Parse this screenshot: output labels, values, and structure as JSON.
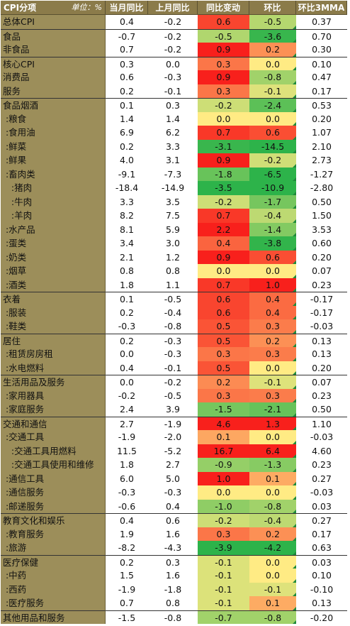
{
  "header": {
    "category_label": "CPI分项",
    "unit_label": "单位：%",
    "columns": [
      "当月同比",
      "上月同比",
      "同比变动",
      "环比",
      "环比3MMA"
    ]
  },
  "colors": {
    "header_bg": "#8b7b4a",
    "name_bg": "#9c8e5a",
    "scale_neg": "#2db34a",
    "scale_mid": "#ffeb84",
    "scale_pos": "#f8201c"
  },
  "rows": [
    {
      "name": "总体CPI",
      "cur": "0.4",
      "prev": "-0.2",
      "chg": "0.6",
      "mom": "-0.5",
      "mma": "0.37",
      "sep": false
    },
    {
      "name": "食品",
      "cur": "-0.7",
      "prev": "-0.2",
      "chg": "-0.5",
      "mom": "-3.6",
      "mma": "0.70",
      "sep": true
    },
    {
      "name": "非食品",
      "cur": "0.7",
      "prev": "-0.2",
      "chg": "0.9",
      "mom": "0.2",
      "mma": "0.30",
      "sep": false
    },
    {
      "name": "核心CPI",
      "cur": "0.3",
      "prev": "0.0",
      "chg": "0.3",
      "mom": "0.0",
      "mma": "0.10",
      "sep": true
    },
    {
      "name": "消费品",
      "cur": "0.6",
      "prev": "-0.3",
      "chg": "0.9",
      "mom": "-0.8",
      "mma": "0.47",
      "sep": false
    },
    {
      "name": "服务",
      "cur": "0.2",
      "prev": "-0.1",
      "chg": "0.3",
      "mom": "-0.1",
      "mma": "0.17",
      "sep": false
    },
    {
      "name": "食品烟酒",
      "cur": "0.1",
      "prev": "0.3",
      "chg": "-0.2",
      "mom": "-2.4",
      "mma": "0.53",
      "sep": true
    },
    {
      "name": " :粮食",
      "cur": "1.4",
      "prev": "1.4",
      "chg": "0.0",
      "mom": "0.0",
      "mma": "0.20",
      "sep": false
    },
    {
      "name": " :食用油",
      "cur": "6.9",
      "prev": "6.2",
      "chg": "0.7",
      "mom": "0.6",
      "mma": "1.07",
      "sep": false
    },
    {
      "name": " :鲜菜",
      "cur": "0.2",
      "prev": "3.3",
      "chg": "-3.1",
      "mom": "-14.5",
      "mma": "2.10",
      "sep": false
    },
    {
      "name": " :鲜果",
      "cur": "4.0",
      "prev": "3.1",
      "chg": "0.9",
      "mom": "-0.2",
      "mma": "2.73",
      "sep": false
    },
    {
      "name": " :畜肉类",
      "cur": "-9.1",
      "prev": "-7.3",
      "chg": "-1.8",
      "mom": "-6.5",
      "mma": "-1.27",
      "sep": false
    },
    {
      "name": "   :猪肉",
      "cur": "-18.4",
      "prev": "-14.9",
      "chg": "-3.5",
      "mom": "-10.9",
      "mma": "-2.80",
      "sep": false
    },
    {
      "name": "   :牛肉",
      "cur": "3.3",
      "prev": "3.5",
      "chg": "-0.2",
      "mom": "-1.7",
      "mma": "0.50",
      "sep": false
    },
    {
      "name": "   :羊肉",
      "cur": "8.2",
      "prev": "7.5",
      "chg": "0.7",
      "mom": "-0.4",
      "mma": "1.50",
      "sep": false
    },
    {
      "name": " :水产品",
      "cur": "8.1",
      "prev": "5.9",
      "chg": "2.2",
      "mom": "-1.4",
      "mma": "3.53",
      "sep": false
    },
    {
      "name": " :蛋类",
      "cur": "3.4",
      "prev": "3.0",
      "chg": "0.4",
      "mom": "-3.8",
      "mma": "0.60",
      "sep": false
    },
    {
      "name": " :奶类",
      "cur": "2.1",
      "prev": "1.2",
      "chg": "0.9",
      "mom": "0.6",
      "mma": "0.20",
      "sep": false
    },
    {
      "name": " :烟草",
      "cur": "0.8",
      "prev": "0.8",
      "chg": "0.0",
      "mom": "0.0",
      "mma": "0.07",
      "sep": false
    },
    {
      "name": " :酒类",
      "cur": "1.8",
      "prev": "1.1",
      "chg": "0.7",
      "mom": "1.0",
      "mma": "0.23",
      "sep": false
    },
    {
      "name": "衣着",
      "cur": "0.1",
      "prev": "-0.5",
      "chg": "0.6",
      "mom": "0.4",
      "mma": "-0.17",
      "sep": true
    },
    {
      "name": " :服装",
      "cur": "0.2",
      "prev": "-0.4",
      "chg": "0.6",
      "mom": "0.4",
      "mma": "-0.17",
      "sep": false
    },
    {
      "name": " :鞋类",
      "cur": "-0.3",
      "prev": "-0.8",
      "chg": "0.5",
      "mom": "0.3",
      "mma": "-0.03",
      "sep": false
    },
    {
      "name": "居住",
      "cur": "0.2",
      "prev": "-0.3",
      "chg": "0.5",
      "mom": "0.2",
      "mma": "0.13",
      "sep": true
    },
    {
      "name": " :租赁房房租",
      "cur": "0.0",
      "prev": "-0.3",
      "chg": "0.3",
      "mom": "0.3",
      "mma": "0.13",
      "sep": false
    },
    {
      "name": " :水电燃料",
      "cur": "0.4",
      "prev": "-0.1",
      "chg": "0.5",
      "mom": "0.0",
      "mma": "0.20",
      "sep": false
    },
    {
      "name": "生活用品及服务",
      "cur": "0.0",
      "prev": "-0.2",
      "chg": "0.2",
      "mom": "-0.1",
      "mma": "0.07",
      "sep": true
    },
    {
      "name": " :家用器具",
      "cur": "-0.2",
      "prev": "-0.5",
      "chg": "0.3",
      "mom": "0.3",
      "mma": "0.23",
      "sep": false
    },
    {
      "name": " :家庭服务",
      "cur": "2.4",
      "prev": "3.9",
      "chg": "-1.5",
      "mom": "-2.1",
      "mma": "0.50",
      "sep": false
    },
    {
      "name": "交通和通信",
      "cur": "2.7",
      "prev": "-1.9",
      "chg": "4.6",
      "mom": "1.3",
      "mma": "1.10",
      "sep": true
    },
    {
      "name": " :交通工具",
      "cur": "-1.9",
      "prev": "-2.0",
      "chg": "0.1",
      "mom": "0.0",
      "mma": "-0.03",
      "sep": false
    },
    {
      "name": "   :交通工具用燃料",
      "cur": "11.5",
      "prev": "-5.2",
      "chg": "16.7",
      "mom": "6.4",
      "mma": "4.60",
      "sep": false
    },
    {
      "name": "   :交通工具使用和维修",
      "cur": "1.8",
      "prev": "2.7",
      "chg": "-0.9",
      "mom": "-1.3",
      "mma": "0.23",
      "sep": false
    },
    {
      "name": " :通信工具",
      "cur": "6.0",
      "prev": "5.0",
      "chg": "1.0",
      "mom": "0.1",
      "mma": "0.27",
      "sep": false
    },
    {
      "name": " :通信服务",
      "cur": "-0.3",
      "prev": "-0.3",
      "chg": "0.0",
      "mom": "0.0",
      "mma": "-0.03",
      "sep": false
    },
    {
      "name": " :邮递服务",
      "cur": "-0.6",
      "prev": "0.4",
      "chg": "-1.0",
      "mom": "-0.8",
      "mma": "0.03",
      "sep": false
    },
    {
      "name": "教育文化和娱乐",
      "cur": "0.4",
      "prev": "0.6",
      "chg": "-0.2",
      "mom": "-0.4",
      "mma": "0.27",
      "sep": true
    },
    {
      "name": " :教育服务",
      "cur": "1.9",
      "prev": "1.6",
      "chg": "0.3",
      "mom": "0.2",
      "mma": "0.17",
      "sep": false
    },
    {
      "name": " :旅游",
      "cur": "-8.2",
      "prev": "-4.3",
      "chg": "-3.9",
      "mom": "-4.2",
      "mma": "0.63",
      "sep": false
    },
    {
      "name": "医疗保健",
      "cur": "0.2",
      "prev": "0.3",
      "chg": "-0.1",
      "mom": "0.0",
      "mma": "0.03",
      "sep": true
    },
    {
      "name": " :中药",
      "cur": "1.5",
      "prev": "1.6",
      "chg": "-0.1",
      "mom": "0.0",
      "mma": "0.10",
      "sep": false
    },
    {
      "name": " :西药",
      "cur": "-1.9",
      "prev": "-1.8",
      "chg": "-0.1",
      "mom": "-0.1",
      "mma": "-0.10",
      "sep": false
    },
    {
      "name": " :医疗服务",
      "cur": "0.7",
      "prev": "0.8",
      "chg": "-0.1",
      "mom": "0.1",
      "mma": "0.13",
      "sep": false
    },
    {
      "name": "其他用品和服务",
      "cur": "-1.5",
      "prev": "-0.8",
      "chg": "-0.7",
      "mom": "-0.8",
      "mma": "-0.20",
      "sep": true
    }
  ]
}
